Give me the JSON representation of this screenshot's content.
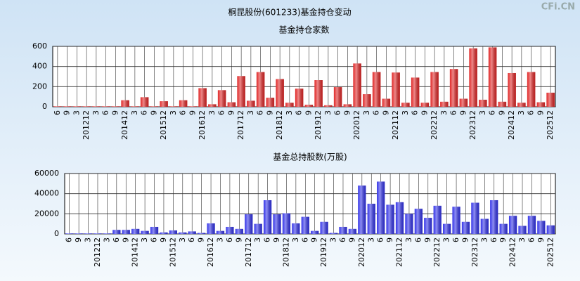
{
  "title": "桐昆股份(601233)基金持仓变动",
  "watermark": "CFi.CN",
  "chart_data": [
    {
      "type": "bar",
      "title": "基金持仓家数",
      "color": "#e02828",
      "grid": true,
      "categories": [
        "6",
        "9",
        "3",
        "201212",
        "3",
        "6",
        "9",
        "201412",
        "3",
        "6",
        "9",
        "201512",
        "3",
        "6",
        "9",
        "201612",
        "3",
        "6",
        "9",
        "201712",
        "3",
        "6",
        "9",
        "201812",
        "3",
        "6",
        "9",
        "201912",
        "3",
        "6",
        "9",
        "202012",
        "3",
        "6",
        "9",
        "202112",
        "3",
        "6",
        "9",
        "202212",
        "3",
        "6",
        "9",
        "202312",
        "3",
        "6",
        "9",
        "202412",
        "3",
        "6",
        "9",
        "202512"
      ],
      "values": [
        5,
        5,
        5,
        5,
        5,
        5,
        5,
        65,
        5,
        95,
        5,
        55,
        5,
        65,
        5,
        185,
        25,
        165,
        45,
        305,
        60,
        345,
        90,
        275,
        40,
        180,
        20,
        265,
        15,
        195,
        25,
        430,
        125,
        345,
        80,
        340,
        40,
        290,
        40,
        345,
        50,
        375,
        80,
        580,
        70,
        590,
        50,
        335,
        40,
        345,
        45,
        140
      ],
      "ylim": [
        0,
        600
      ],
      "yticks": [
        0,
        200,
        400,
        600
      ]
    },
    {
      "type": "bar",
      "title": "基金总持股数(万股)",
      "color": "#3434e8",
      "grid": true,
      "categories": [
        "6",
        "9",
        "3",
        "201212",
        "3",
        "6",
        "9",
        "201412",
        "3",
        "6",
        "9",
        "201512",
        "3",
        "6",
        "9",
        "201612",
        "3",
        "6",
        "9",
        "201712",
        "3",
        "6",
        "9",
        "201812",
        "3",
        "6",
        "9",
        "201912",
        "3",
        "6",
        "9",
        "202012",
        "3",
        "6",
        "9",
        "202112",
        "3",
        "6",
        "9",
        "202212",
        "3",
        "6",
        "9",
        "202312",
        "3",
        "6",
        "9",
        "202412",
        "3",
        "6",
        "9",
        "202512"
      ],
      "values": [
        500,
        500,
        500,
        500,
        500,
        4000,
        4000,
        5000,
        3000,
        7000,
        1500,
        3500,
        1500,
        2500,
        1000,
        10500,
        3000,
        7000,
        5000,
        19500,
        10000,
        33500,
        19500,
        20500,
        10500,
        17000,
        3000,
        12000,
        1000,
        7000,
        5000,
        48000,
        30000,
        52000,
        29000,
        31500,
        20000,
        25000,
        16000,
        28000,
        10000,
        27000,
        12000,
        31000,
        15000,
        33500,
        10000,
        18000,
        8000,
        18000,
        13000,
        8500
      ],
      "ylim": [
        0,
        60000
      ],
      "yticks": [
        0,
        20000,
        40000,
        60000
      ]
    }
  ]
}
